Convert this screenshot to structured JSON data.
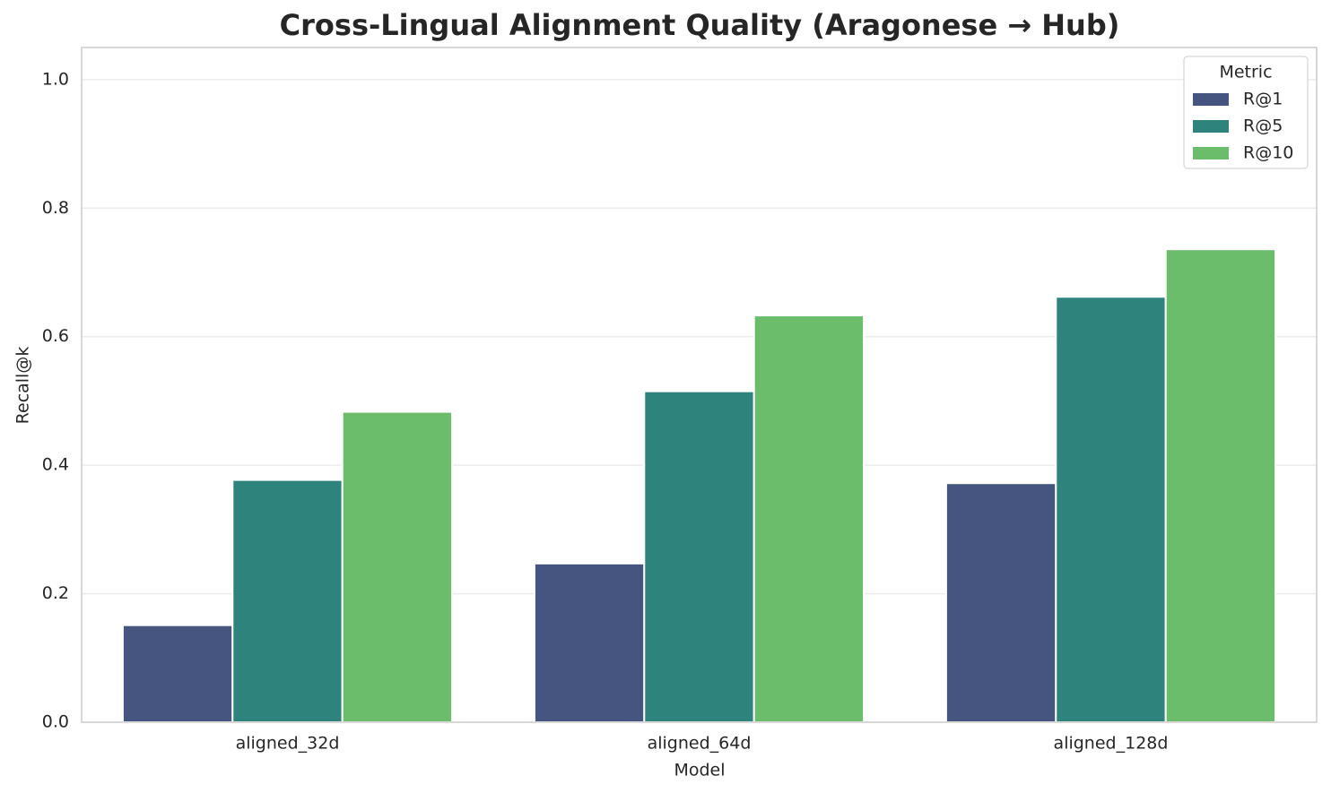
{
  "chart_data": {
    "type": "bar",
    "title": "Cross-Lingual Alignment Quality (Aragonese → Hub)",
    "x_label": "Model",
    "y_label": "Recall@k",
    "categories": [
      "aligned_32d",
      "aligned_64d",
      "aligned_128d"
    ],
    "series": [
      {
        "name": "R@1",
        "color": "#46557f",
        "values": [
          0.151,
          0.247,
          0.372
        ]
      },
      {
        "name": "R@5",
        "color": "#2e837c",
        "values": [
          0.377,
          0.515,
          0.662
        ]
      },
      {
        "name": "R@10",
        "color": "#6bbd6b",
        "values": [
          0.483,
          0.633,
          0.736
        ]
      }
    ],
    "legend_title": "Metric",
    "legend_position": "upper right",
    "ylim": [
      0,
      1.05
    ],
    "yticks": [
      {
        "value": 0,
        "label": "0.0"
      },
      0.2,
      0.4,
      0.6,
      0.8,
      {
        "value": 1,
        "label": "1.0"
      }
    ],
    "grid": true
  }
}
